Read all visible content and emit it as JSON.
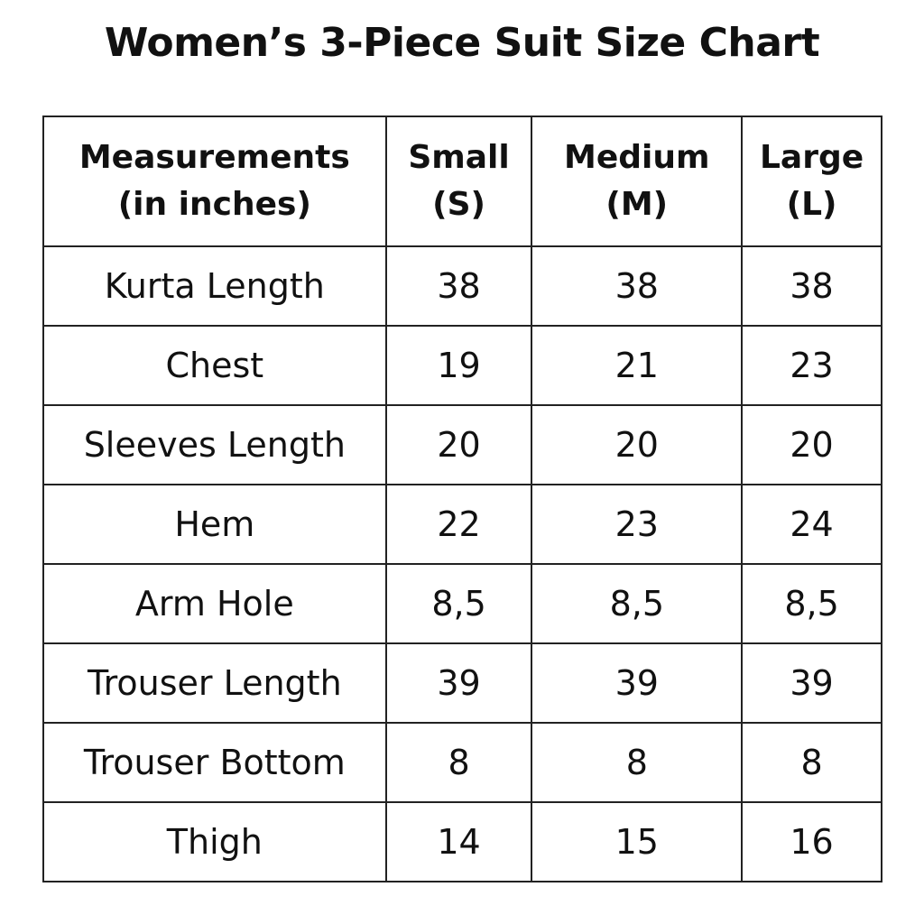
{
  "title": "Women’s 3-Piece Suit Size Chart",
  "header": [
    {
      "line1": "Measurements",
      "line2": "(in inches)"
    },
    {
      "line1": "Small",
      "line2": "(S)"
    },
    {
      "line1": "Medium",
      "line2": "(M)"
    },
    {
      "line1": "Large",
      "line2": "(L)"
    }
  ],
  "rows": [
    [
      "Kurta Length",
      "38",
      "38",
      "38"
    ],
    [
      "Chest",
      "19",
      "21",
      "23"
    ],
    [
      "Sleeves Length",
      "20",
      "20",
      "20"
    ],
    [
      "Hem",
      "22",
      "23",
      "24"
    ],
    [
      "Arm Hole",
      "8,5",
      "8,5",
      "8,5"
    ],
    [
      "Trouser Length",
      "39",
      "39",
      "39"
    ],
    [
      "Trouser Bottom",
      "8",
      "8",
      "8"
    ],
    [
      "Thigh",
      "14",
      "15",
      "16"
    ]
  ]
}
